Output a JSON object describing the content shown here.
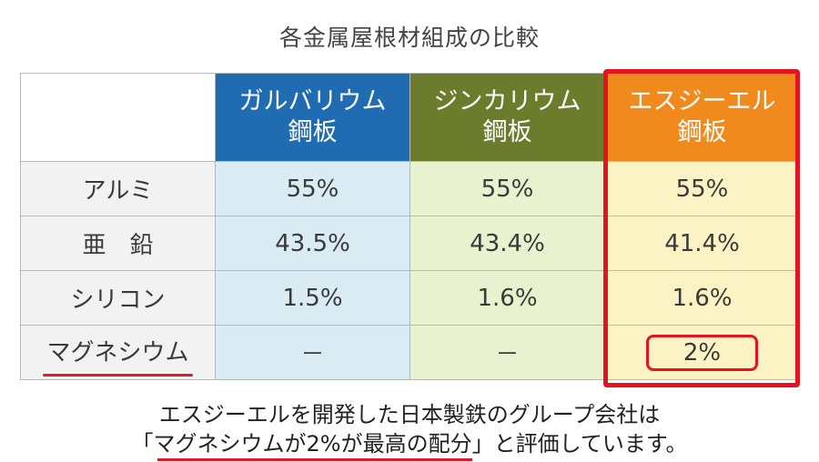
{
  "title": "各金属屋根材組成の比較",
  "table": {
    "headers": [
      {
        "line1": "ガルバリウム",
        "line2": "鋼板"
      },
      {
        "line1": "ジンカリウム",
        "line2": "鋼板"
      },
      {
        "line1": "エスジーエル",
        "line2": "鋼板"
      }
    ],
    "rows": [
      {
        "label": "アルミ",
        "values": [
          "55%",
          "55%",
          "55%"
        ]
      },
      {
        "label": "亜　鉛",
        "values": [
          "43.5%",
          "43.4%",
          "41.4%"
        ]
      },
      {
        "label": "シリコン",
        "values": [
          "1.5%",
          "1.6%",
          "1.6%"
        ]
      },
      {
        "label": "マグネシウム",
        "values": [
          "－",
          "－",
          "2%"
        ]
      }
    ]
  },
  "caption": {
    "line1": "エスジーエルを開発した日本製鉄のグループ会社は",
    "line2_open": "「",
    "line2_mark": "マグネシウムが2%が最高の配分",
    "line2_rest": "」と評価しています。"
  },
  "colors": {
    "galvalume": "#1f6cb3",
    "zincalume": "#6b7d2c",
    "sgl": "#f08a1d",
    "highlight": "#e3131f"
  }
}
